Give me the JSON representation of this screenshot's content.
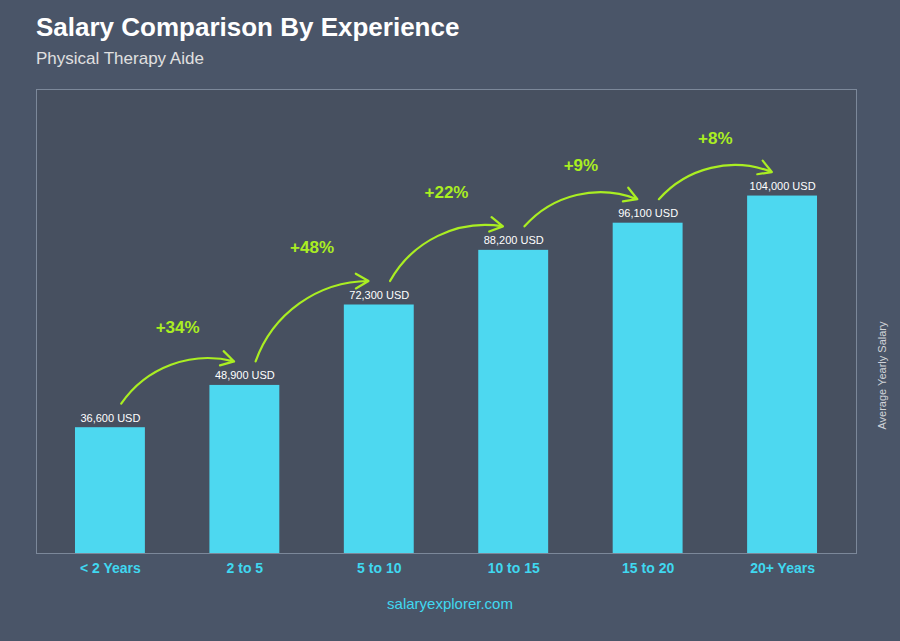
{
  "chart_data": {
    "type": "bar",
    "title": "Salary Comparison By Experience",
    "subtitle": "Physical Therapy Aide",
    "categories": [
      "< 2 Years",
      "2 to 5",
      "5 to 10",
      "10 to 15",
      "15 to 20",
      "20+ Years"
    ],
    "values": [
      36600,
      48900,
      72300,
      88200,
      96100,
      104000
    ],
    "value_labels": [
      "36,600 USD",
      "48,900 USD",
      "72,300 USD",
      "88,200 USD",
      "96,100 USD",
      "104,000 USD"
    ],
    "data_labels": true,
    "color": "#4dd8f0",
    "ylabel": "Average Yearly Salary",
    "ylim": [
      0,
      135000
    ],
    "tick_labels": "x",
    "grid": false,
    "annotations": [
      "+34%",
      "+48%",
      "+22%",
      "+9%",
      "+8%"
    ],
    "caption": "salaryexplorer.com"
  }
}
